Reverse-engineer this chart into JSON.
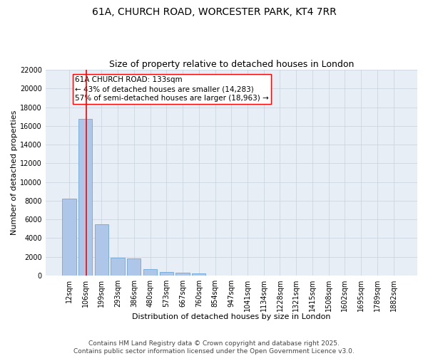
{
  "title_line1": "61A, CHURCH ROAD, WORCESTER PARK, KT4 7RR",
  "title_line2": "Size of property relative to detached houses in London",
  "xlabel": "Distribution of detached houses by size in London",
  "ylabel": "Number of detached properties",
  "categories": [
    "12sqm",
    "106sqm",
    "199sqm",
    "293sqm",
    "386sqm",
    "480sqm",
    "573sqm",
    "667sqm",
    "760sqm",
    "854sqm",
    "947sqm",
    "1041sqm",
    "1134sqm",
    "1228sqm",
    "1321sqm",
    "1415sqm",
    "1508sqm",
    "1602sqm",
    "1695sqm",
    "1789sqm",
    "1882sqm"
  ],
  "values": [
    8200,
    16750,
    5450,
    1900,
    1850,
    700,
    380,
    290,
    220,
    0,
    0,
    0,
    0,
    0,
    0,
    0,
    0,
    0,
    0,
    0,
    0
  ],
  "bar_color": "#aec6e8",
  "bar_edge_color": "#5a9fd4",
  "vline_x": 1.05,
  "vline_color": "red",
  "annotation_text": "61A CHURCH ROAD: 133sqm\n← 43% of detached houses are smaller (14,283)\n57% of semi-detached houses are larger (18,963) →",
  "annotation_box_color": "white",
  "annotation_box_edge_color": "red",
  "ylim": [
    0,
    22000
  ],
  "yticks": [
    0,
    2000,
    4000,
    6000,
    8000,
    10000,
    12000,
    14000,
    16000,
    18000,
    20000,
    22000
  ],
  "grid_color": "#c8d0dc",
  "background_color": "#e8eef6",
  "footer_text": "Contains HM Land Registry data © Crown copyright and database right 2025.\nContains public sector information licensed under the Open Government Licence v3.0.",
  "title_fontsize": 10,
  "subtitle_fontsize": 9,
  "xlabel_fontsize": 8,
  "ylabel_fontsize": 8,
  "tick_fontsize": 7,
  "annotation_fontsize": 7.5,
  "footer_fontsize": 6.5
}
